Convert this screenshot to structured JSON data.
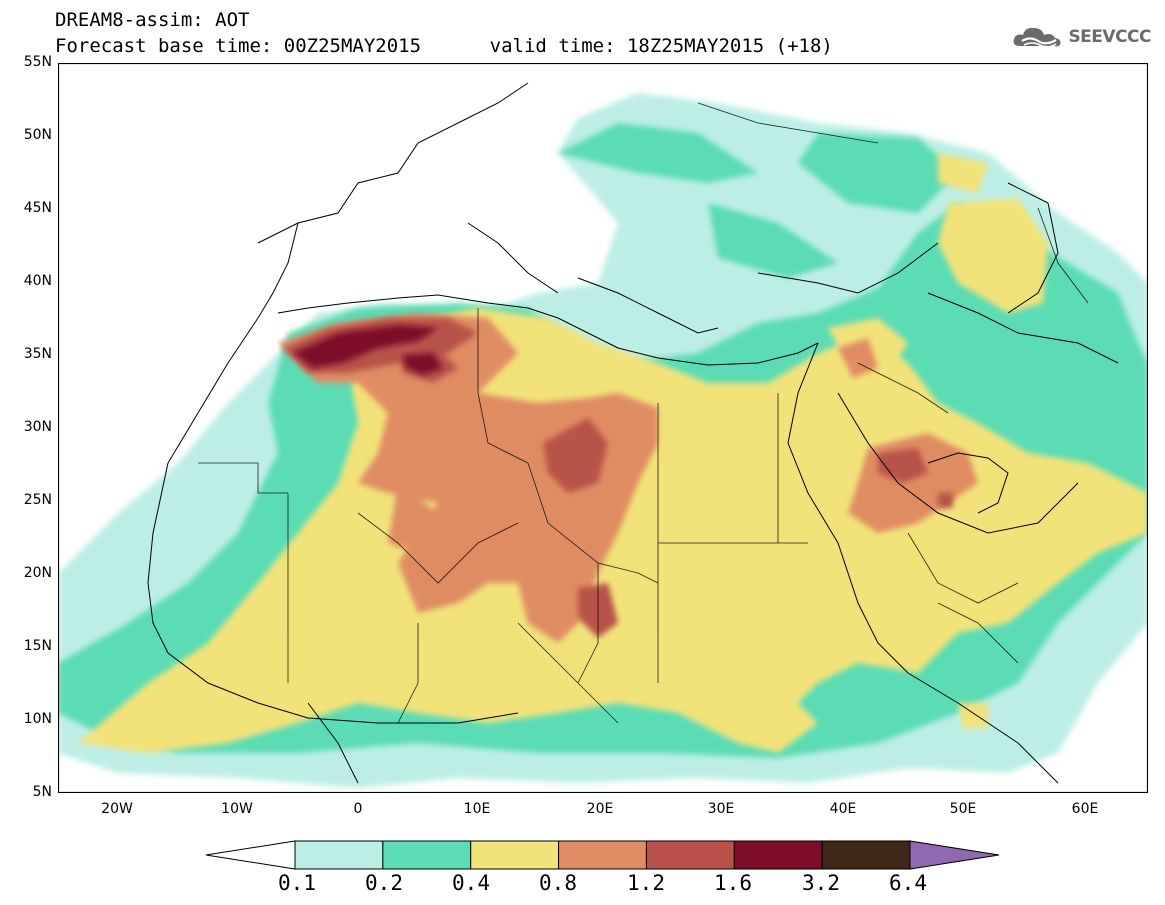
{
  "header": {
    "title": "DREAM8-assim: AOT",
    "subtitle": "Forecast base time: 00Z25MAY2015      valid time: 18Z25MAY2015 (+18)"
  },
  "logo": {
    "text": "SEEVCCC",
    "icon": "cloud-icon"
  },
  "map": {
    "region": "North Africa, Mediterranean, Middle East",
    "projection": "cylindrical-equidistant",
    "lon_range": [
      -25,
      65
    ],
    "lat_range": [
      5,
      55
    ],
    "lat_tick_labels": [
      "55N",
      "50N",
      "45N",
      "40N",
      "35N",
      "30N",
      "25N",
      "20N",
      "15N",
      "10N",
      "5N"
    ],
    "lon_tick_labels": [
      "20W",
      "10W",
      "0",
      "10E",
      "20E",
      "30E",
      "40E",
      "50E",
      "60E"
    ],
    "variable": "Aerosol Optical Thickness (dust)"
  },
  "legend": {
    "levels": [
      "0.1",
      "0.2",
      "0.4",
      "0.8",
      "1.2",
      "1.6",
      "3.2",
      "6.4"
    ],
    "colors": [
      "#ffffff",
      "#bdeee6",
      "#5cdcb4",
      "#f2e27a",
      "#e08c64",
      "#b8524a",
      "#7e0d2c",
      "#3f2718",
      "#8f6ab0"
    ]
  }
}
